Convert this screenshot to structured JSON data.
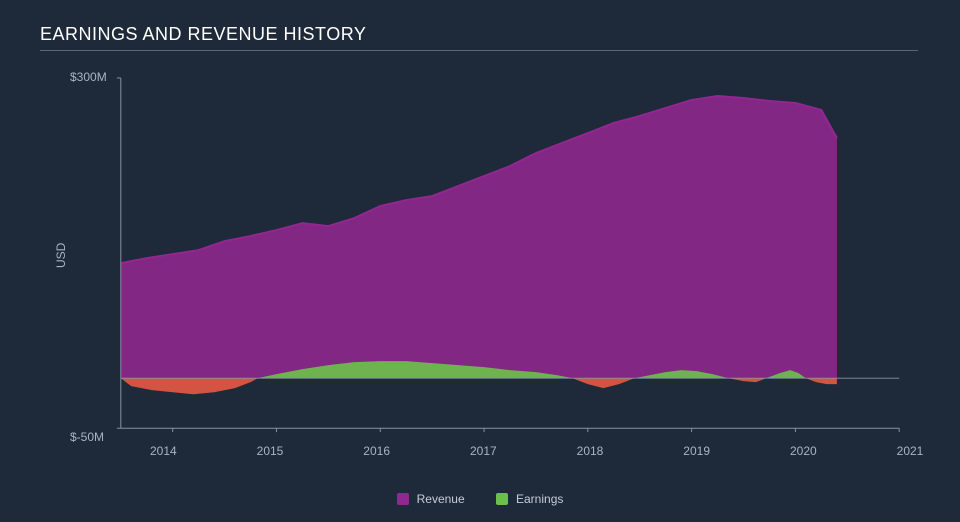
{
  "title": "EARNINGS AND REVENUE HISTORY",
  "chart": {
    "type": "area",
    "background_color": "#1e2a3a",
    "title_rule_color": "#5a6576",
    "axis_color": "#8892a3",
    "tick_color": "#aab3c2",
    "ylabel": "USD",
    "y_axis": {
      "min": -50,
      "max": 300,
      "ticks": [
        -50,
        300
      ],
      "tick_labels": [
        "$-50M",
        "$300M"
      ]
    },
    "x_axis": {
      "min": 2013.5,
      "max": 2021.0,
      "ticks": [
        2014,
        2015,
        2016,
        2017,
        2018,
        2019,
        2020,
        2021
      ]
    },
    "series": [
      {
        "name": "Revenue",
        "fill_color": "#92278f",
        "fill_opacity": 0.88,
        "stroke_color": "#92278f",
        "stroke_width": 2,
        "points": [
          [
            2013.5,
            115
          ],
          [
            2013.75,
            120
          ],
          [
            2014.0,
            124
          ],
          [
            2014.25,
            128
          ],
          [
            2014.5,
            137
          ],
          [
            2014.75,
            142
          ],
          [
            2015.0,
            148
          ],
          [
            2015.25,
            155
          ],
          [
            2015.5,
            152
          ],
          [
            2015.75,
            160
          ],
          [
            2016.0,
            172
          ],
          [
            2016.25,
            178
          ],
          [
            2016.5,
            182
          ],
          [
            2016.75,
            192
          ],
          [
            2017.0,
            202
          ],
          [
            2017.25,
            212
          ],
          [
            2017.5,
            225
          ],
          [
            2017.75,
            235
          ],
          [
            2018.0,
            245
          ],
          [
            2018.25,
            255
          ],
          [
            2018.5,
            262
          ],
          [
            2018.75,
            270
          ],
          [
            2019.0,
            278
          ],
          [
            2019.25,
            282
          ],
          [
            2019.5,
            280
          ],
          [
            2019.75,
            277
          ],
          [
            2020.0,
            275
          ],
          [
            2020.25,
            268
          ],
          [
            2020.4,
            240
          ]
        ]
      },
      {
        "name": "Earnings",
        "pos_fill_color": "#6cbf4b",
        "neg_fill_color": "#e35844",
        "fill_opacity": 0.92,
        "stroke_width": 0,
        "segments": [
          {
            "sign": "neg",
            "points": [
              [
                2013.5,
                0
              ],
              [
                2013.6,
                -8
              ],
              [
                2013.8,
                -12
              ],
              [
                2014.0,
                -14
              ],
              [
                2014.2,
                -16
              ],
              [
                2014.4,
                -14
              ],
              [
                2014.6,
                -10
              ],
              [
                2014.75,
                -4
              ],
              [
                2014.82,
                0
              ]
            ]
          },
          {
            "sign": "pos",
            "points": [
              [
                2014.82,
                0
              ],
              [
                2015.0,
                4
              ],
              [
                2015.25,
                9
              ],
              [
                2015.5,
                13
              ],
              [
                2015.75,
                16
              ],
              [
                2016.0,
                17
              ],
              [
                2016.25,
                17
              ],
              [
                2016.5,
                15
              ],
              [
                2016.75,
                13
              ],
              [
                2017.0,
                11
              ],
              [
                2017.25,
                8
              ],
              [
                2017.5,
                6
              ],
              [
                2017.7,
                3
              ],
              [
                2017.85,
                0
              ]
            ]
          },
          {
            "sign": "neg",
            "points": [
              [
                2017.85,
                0
              ],
              [
                2018.0,
                -6
              ],
              [
                2018.15,
                -10
              ],
              [
                2018.3,
                -6
              ],
              [
                2018.45,
                0
              ]
            ]
          },
          {
            "sign": "pos",
            "points": [
              [
                2018.45,
                0
              ],
              [
                2018.6,
                3
              ],
              [
                2018.75,
                6
              ],
              [
                2018.9,
                8
              ],
              [
                2019.05,
                7
              ],
              [
                2019.2,
                4
              ],
              [
                2019.35,
                0
              ]
            ]
          },
          {
            "sign": "neg",
            "points": [
              [
                2019.35,
                0
              ],
              [
                2019.5,
                -3
              ],
              [
                2019.62,
                -4
              ],
              [
                2019.72,
                0
              ]
            ]
          },
          {
            "sign": "pos",
            "points": [
              [
                2019.72,
                0
              ],
              [
                2019.85,
                5
              ],
              [
                2019.95,
                8
              ],
              [
                2020.03,
                5
              ],
              [
                2020.1,
                0
              ]
            ]
          },
          {
            "sign": "neg",
            "points": [
              [
                2020.1,
                0
              ],
              [
                2020.2,
                -4
              ],
              [
                2020.3,
                -6
              ],
              [
                2020.4,
                -6
              ]
            ]
          }
        ]
      }
    ],
    "legend": [
      {
        "swatch": "#92278f",
        "label": "Revenue"
      },
      {
        "swatch": "#6cbf4b",
        "label": "Earnings"
      }
    ]
  }
}
